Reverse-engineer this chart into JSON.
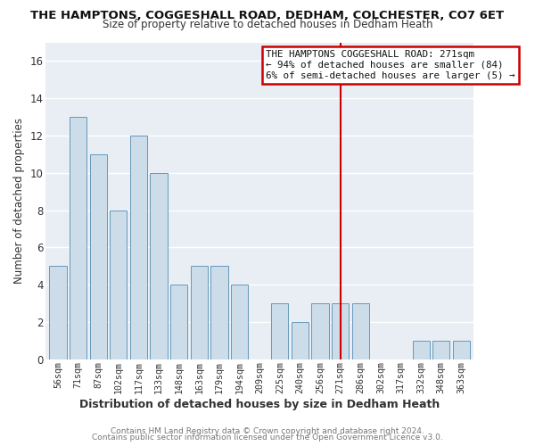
{
  "title": "THE HAMPTONS, COGGESHALL ROAD, DEDHAM, COLCHESTER, CO7 6ET",
  "subtitle": "Size of property relative to detached houses in Dedham Heath",
  "xlabel": "Distribution of detached houses by size in Dedham Heath",
  "ylabel": "Number of detached properties",
  "footer1": "Contains HM Land Registry data © Crown copyright and database right 2024.",
  "footer2": "Contains public sector information licensed under the Open Government Licence v3.0.",
  "bar_labels": [
    "56sqm",
    "71sqm",
    "87sqm",
    "102sqm",
    "117sqm",
    "133sqm",
    "148sqm",
    "163sqm",
    "179sqm",
    "194sqm",
    "209sqm",
    "225sqm",
    "240sqm",
    "256sqm",
    "271sqm",
    "286sqm",
    "302sqm",
    "317sqm",
    "332sqm",
    "348sqm",
    "363sqm"
  ],
  "bar_values": [
    5,
    13,
    11,
    8,
    12,
    10,
    4,
    5,
    5,
    4,
    0,
    3,
    2,
    3,
    3,
    3,
    0,
    0,
    1,
    1,
    1
  ],
  "bar_color": "#ccdce8",
  "bar_edge_color": "#6699bb",
  "vline_x": 14,
  "vline_color": "#cc0000",
  "annotation_title": "THE HAMPTONS COGGESHALL ROAD: 271sqm",
  "annotation_line1": "← 94% of detached houses are smaller (84)",
  "annotation_line2": "6% of semi-detached houses are larger (5) →",
  "annotation_box_color": "#ffffff",
  "annotation_border_color": "#cc0000",
  "ylim": [
    0,
    17
  ],
  "yticks": [
    0,
    2,
    4,
    6,
    8,
    10,
    12,
    14,
    16
  ],
  "plot_bg_color": "#e8eef4",
  "fig_bg_color": "#ffffff",
  "grid_color": "#ffffff",
  "title_fontsize": 9.5,
  "subtitle_fontsize": 8.5
}
